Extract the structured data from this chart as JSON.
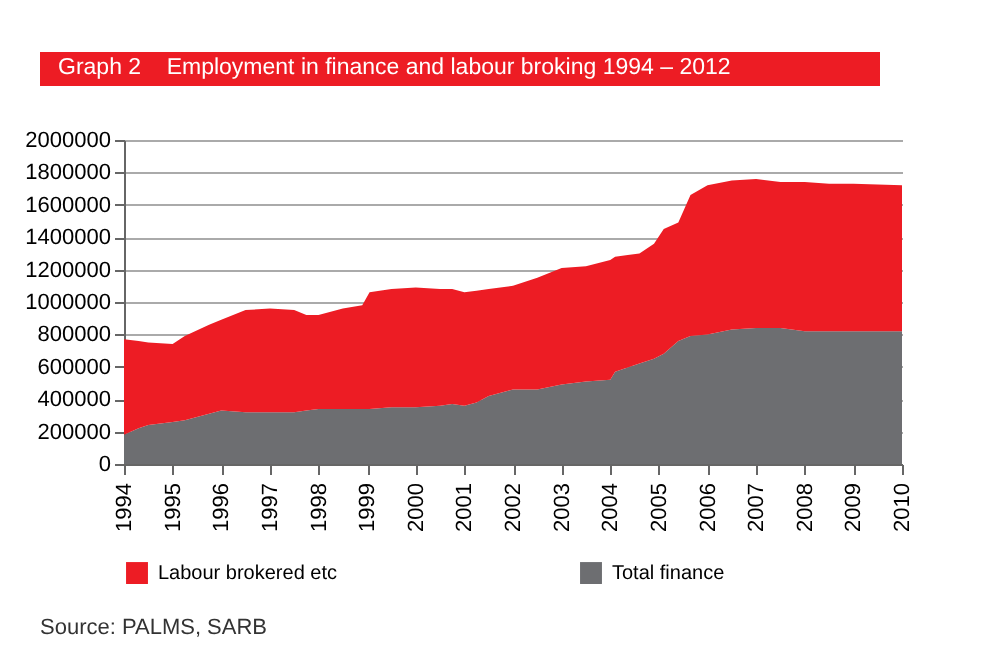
{
  "chart_data": {
    "type": "area",
    "title": "Graph 2    Employment in finance and labour broking 1994 – 2012",
    "x": [
      1994,
      1994.3,
      1994.5,
      1995,
      1995.25,
      1995.75,
      1996,
      1996.5,
      1997,
      1997.5,
      1997.75,
      1998,
      1998.5,
      1998.9,
      1999.05,
      1999.5,
      2000,
      2000.5,
      2000.75,
      2001,
      2001.25,
      2001.5,
      2002,
      2002.5,
      2003,
      2003.5,
      2004,
      2004.1,
      2004.6,
      2004.9,
      2005.1,
      2005.4,
      2005.65,
      2006,
      2006.5,
      2007,
      2007.5,
      2008,
      2008.5,
      2009,
      2010
    ],
    "stacked": true,
    "series": [
      {
        "name": "Total finance",
        "color": "#6d6e71",
        "values": [
          180000,
          220000,
          240000,
          260000,
          270000,
          310000,
          330000,
          320000,
          320000,
          320000,
          330000,
          340000,
          340000,
          340000,
          340000,
          350000,
          350000,
          360000,
          370000,
          360000,
          380000,
          420000,
          460000,
          460000,
          490000,
          510000,
          520000,
          570000,
          620000,
          650000,
          680000,
          760000,
          790000,
          800000,
          830000,
          840000,
          840000,
          820000,
          820000,
          820000,
          820000
        ]
      },
      {
        "name": "Labour brokered etc",
        "color": "#ed1c24",
        "values": [
          590000,
          540000,
          510000,
          480000,
          520000,
          550000,
          560000,
          630000,
          640000,
          630000,
          590000,
          580000,
          620000,
          640000,
          720000,
          730000,
          740000,
          720000,
          710000,
          700000,
          690000,
          660000,
          640000,
          690000,
          720000,
          710000,
          740000,
          710000,
          680000,
          710000,
          770000,
          730000,
          870000,
          920000,
          920000,
          920000,
          900000,
          920000,
          910000,
          910000,
          900000
        ]
      }
    ],
    "xlim": [
      1994,
      2010
    ],
    "xticks": [
      1994,
      1995,
      1996,
      1997,
      1998,
      1999,
      2000,
      2001,
      2002,
      2003,
      2004,
      2005,
      2006,
      2007,
      2008,
      2009,
      2010
    ],
    "ylim": [
      0,
      2000000
    ],
    "yticks": [
      0,
      200000,
      400000,
      600000,
      800000,
      1000000,
      1200000,
      1400000,
      1600000,
      1800000,
      2000000
    ],
    "grid": "y",
    "legend": "bottom",
    "annotations": [
      "Source: PALMS, SARB"
    ]
  }
}
